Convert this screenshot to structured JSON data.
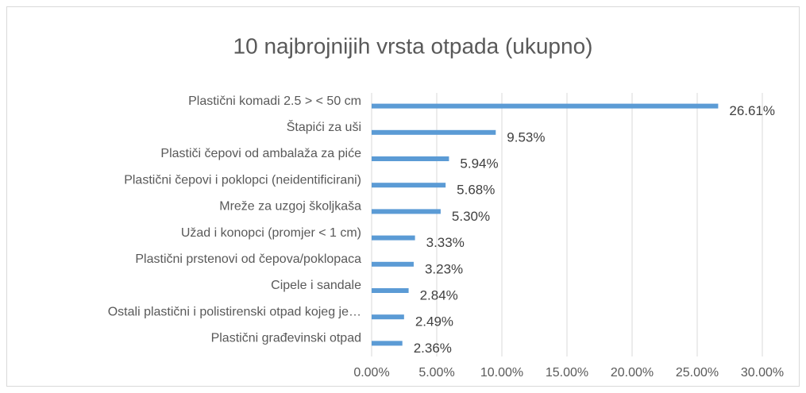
{
  "chart_data": {
    "type": "bar",
    "orientation": "horizontal",
    "title": "10 najbrojnijih vrsta otpada (ukupno)",
    "categories": [
      "Plastični komadi 2.5 > < 50 cm",
      "Štapići za uši",
      "Plastiči čepovi od ambalaža za piće",
      "Plastični čepovi i poklopci (neidentificirani)",
      "Mreže za uzgoj školjkaša",
      "Užad i konopci (promjer < 1 cm)",
      "Plastični prstenovi od čepova/poklopaca",
      "Cipele i sandale",
      "Ostali plastični i polistirenski otpad kojeg je…",
      "Plastični građevinski otpad"
    ],
    "values": [
      26.61,
      9.53,
      5.94,
      5.68,
      5.3,
      3.33,
      3.23,
      2.84,
      2.49,
      2.36
    ],
    "value_labels": [
      "26.61%",
      "9.53%",
      "5.94%",
      "5.68%",
      "5.30%",
      "3.33%",
      "3.23%",
      "2.84%",
      "2.49%",
      "2.36%"
    ],
    "color": "#5b9bd5",
    "xlim": [
      0,
      30
    ],
    "xticks": [
      {
        "value": 0,
        "label": "0.00%"
      },
      {
        "value": 5,
        "label": "5.00%"
      },
      {
        "value": 10,
        "label": "10.00%"
      },
      {
        "value": 15,
        "label": "15.00%"
      },
      {
        "value": 20,
        "label": "20.00%"
      },
      {
        "value": 25,
        "label": "25.00%"
      },
      {
        "value": 30,
        "label": "30.00%"
      }
    ],
    "grid": true
  }
}
